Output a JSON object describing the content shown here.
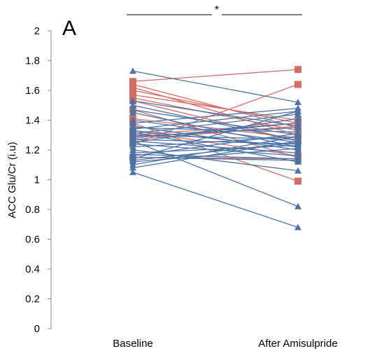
{
  "chart_data": {
    "type": "line",
    "panel_label": "A",
    "xlabel": "",
    "ylabel": "ACC Glu/Cr (i.u)",
    "categories": [
      "Baseline",
      "After Amisulpride"
    ],
    "ylim": [
      0,
      2
    ],
    "yticks": [
      "0",
      "0.2",
      "0.4",
      "0.6",
      "0.8",
      "1",
      "1.2",
      "1.4",
      "1.6",
      "1.8",
      "2"
    ],
    "significance": "*",
    "grid": false,
    "colors": {
      "blue": "#4a74a8",
      "red": "#d96a64"
    },
    "series": [
      {
        "group": "blue",
        "values": [
          1.73,
          1.52
        ]
      },
      {
        "group": "blue",
        "values": [
          1.53,
          1.36
        ]
      },
      {
        "group": "blue",
        "values": [
          1.5,
          1.26
        ]
      },
      {
        "group": "blue",
        "values": [
          1.47,
          1.3
        ]
      },
      {
        "group": "blue",
        "values": [
          1.45,
          1.22
        ]
      },
      {
        "group": "blue",
        "values": [
          1.4,
          1.25
        ]
      },
      {
        "group": "blue",
        "values": [
          1.38,
          1.48
        ]
      },
      {
        "group": "blue",
        "values": [
          1.36,
          1.2
        ]
      },
      {
        "group": "blue",
        "values": [
          1.35,
          1.32
        ]
      },
      {
        "group": "blue",
        "values": [
          1.34,
          1.46
        ]
      },
      {
        "group": "blue",
        "values": [
          1.33,
          1.22
        ]
      },
      {
        "group": "blue",
        "values": [
          1.32,
          1.12
        ]
      },
      {
        "group": "blue",
        "values": [
          1.31,
          1.44
        ]
      },
      {
        "group": "blue",
        "values": [
          1.3,
          1.27
        ]
      },
      {
        "group": "blue",
        "values": [
          1.29,
          1.35
        ]
      },
      {
        "group": "blue",
        "values": [
          1.28,
          1.38
        ]
      },
      {
        "group": "blue",
        "values": [
          1.27,
          1.24
        ]
      },
      {
        "group": "blue",
        "values": [
          1.26,
          1.18
        ]
      },
      {
        "group": "blue",
        "values": [
          1.25,
          1.41
        ]
      },
      {
        "group": "blue",
        "values": [
          1.24,
          1.16
        ]
      },
      {
        "group": "blue",
        "values": [
          1.22,
          1.29
        ]
      },
      {
        "group": "blue",
        "values": [
          1.2,
          1.06
        ]
      },
      {
        "group": "blue",
        "values": [
          1.18,
          1.23
        ]
      },
      {
        "group": "blue",
        "values": [
          1.17,
          1.14
        ]
      },
      {
        "group": "blue",
        "values": [
          1.16,
          1.31
        ]
      },
      {
        "group": "blue",
        "values": [
          1.15,
          1.13
        ]
      },
      {
        "group": "blue",
        "values": [
          1.14,
          1.46
        ]
      },
      {
        "group": "blue",
        "values": [
          1.13,
          1.25
        ]
      },
      {
        "group": "blue",
        "values": [
          1.12,
          1.21
        ]
      },
      {
        "group": "blue",
        "values": [
          1.1,
          1.29
        ]
      },
      {
        "group": "blue",
        "values": [
          1.08,
          1.26
        ]
      },
      {
        "group": "blue",
        "values": [
          1.05,
          0.68
        ]
      },
      {
        "group": "blue",
        "values": [
          1.26,
          0.82
        ]
      },
      {
        "group": "red",
        "values": [
          1.66,
          1.74
        ]
      },
      {
        "group": "red",
        "values": [
          1.64,
          1.35
        ]
      },
      {
        "group": "red",
        "values": [
          1.62,
          1.3
        ]
      },
      {
        "group": "red",
        "values": [
          1.6,
          1.38
        ]
      },
      {
        "group": "red",
        "values": [
          1.57,
          1.4
        ]
      },
      {
        "group": "red",
        "values": [
          1.55,
          1.33
        ]
      },
      {
        "group": "red",
        "values": [
          1.53,
          1.26
        ]
      },
      {
        "group": "red",
        "values": [
          1.47,
          1.15
        ]
      },
      {
        "group": "red",
        "values": [
          1.41,
          1.28
        ]
      },
      {
        "group": "red",
        "values": [
          1.38,
          0.99
        ]
      },
      {
        "group": "red",
        "values": [
          1.33,
          1.16
        ]
      },
      {
        "group": "red",
        "values": [
          1.3,
          1.38
        ]
      },
      {
        "group": "red",
        "values": [
          1.27,
          1.36
        ]
      },
      {
        "group": "red",
        "values": [
          1.24,
          1.64
        ]
      },
      {
        "group": "red",
        "values": [
          1.15,
          1.14
        ]
      }
    ]
  }
}
